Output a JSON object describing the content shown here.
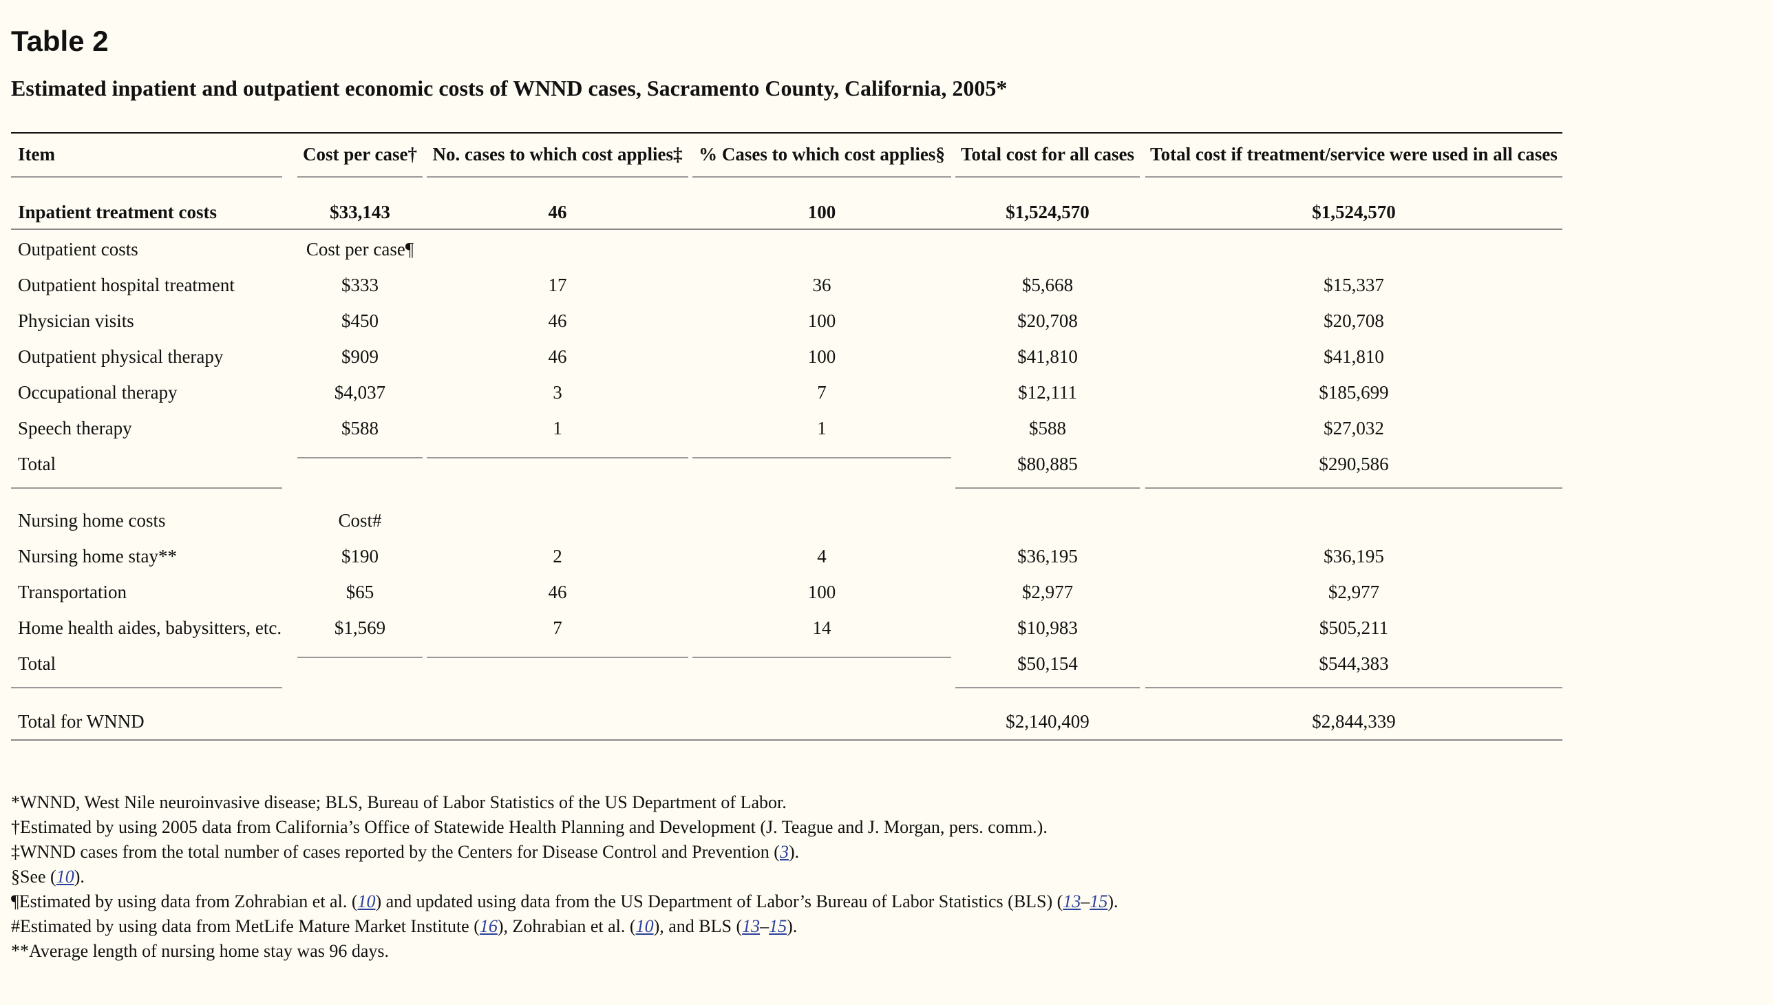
{
  "table_label": "Table 2",
  "caption": "Estimated inpatient and outpatient economic costs of WNND cases, Sacramento County, California, 2005*",
  "headers": {
    "item": "Item",
    "cost_per_case": "Cost per case†",
    "num_cases": "No. cases to which cost applies‡",
    "pct_cases": "% Cases to which cost applies§",
    "total_cost": "Total cost for all cases",
    "total_if_all": "Total cost if treatment/service were used in all cases"
  },
  "inpatient": {
    "item": "Inpatient treatment costs",
    "cost": "$33,143",
    "cases": "46",
    "pct": "100",
    "total": "$1,524,570",
    "total_all": "$1,524,570"
  },
  "outpatient": {
    "section_label": "Outpatient costs",
    "section_cost_label": "Cost per case¶",
    "rows": [
      {
        "item": "Outpatient hospital treatment",
        "cost": "$333",
        "cases": "17",
        "pct": "36",
        "total": "$5,668",
        "total_all": "$15,337"
      },
      {
        "item": "Physician visits",
        "cost": "$450",
        "cases": "46",
        "pct": "100",
        "total": "$20,708",
        "total_all": "$20,708"
      },
      {
        "item": "Outpatient physical therapy",
        "cost": "$909",
        "cases": "46",
        "pct": "100",
        "total": "$41,810",
        "total_all": "$41,810"
      },
      {
        "item": "Occupational therapy",
        "cost": "$4,037",
        "cases": "3",
        "pct": "7",
        "total": "$12,111",
        "total_all": "$185,699"
      },
      {
        "item": "Speech therapy",
        "cost": "$588",
        "cases": "1",
        "pct": "1",
        "total": "$588",
        "total_all": "$27,032"
      }
    ],
    "total_label": "Total",
    "total": "$80,885",
    "total_all": "$290,586"
  },
  "nursing": {
    "section_label": "Nursing home costs",
    "section_cost_label": "Cost#",
    "rows": [
      {
        "item": "Nursing home stay**",
        "cost": "$190",
        "cases": "2",
        "pct": "4",
        "total": "$36,195",
        "total_all": "$36,195"
      },
      {
        "item": "Transportation",
        "cost": "$65",
        "cases": "46",
        "pct": "100",
        "total": "$2,977",
        "total_all": "$2,977"
      },
      {
        "item": "Home health aides, babysitters, etc.",
        "cost": "$1,569",
        "cases": "7",
        "pct": "14",
        "total": "$10,983",
        "total_all": "$505,211"
      }
    ],
    "total_label": "Total",
    "total": "$50,154",
    "total_all": "$544,383"
  },
  "grand_total": {
    "item": "Total for WNND",
    "total": "$2,140,409",
    "total_all": "$2,844,339"
  },
  "footnotes": {
    "fn1": "*WNND, West Nile neuroinvasive disease; BLS, Bureau of Labor Statistics of the US Department of Labor.",
    "fn2": "†Estimated by using 2005 data from California’s Office of Statewide Health Planning and Development (J. Teague and J. Morgan, pers. comm.).",
    "fn3_pre": "‡WNND cases from the total number of cases reported by the Centers for Disease Control and Prevention (",
    "fn3_ref": "3",
    "fn3_post": ").",
    "fn4_pre": "§See (",
    "fn4_ref": "10",
    "fn4_post": ").",
    "fn5_pre": "¶Estimated by using data from Zohrabian et al. (",
    "fn5_ref1": "10",
    "fn5_mid": ") and updated using data from the US Department of Labor’s Bureau of Labor Statistics (BLS) (",
    "fn5_ref2": "13",
    "fn5_dash": "–",
    "fn5_ref3": "15",
    "fn5_post": ").",
    "fn6_pre": "#Estimated by using data from MetLife Mature Market Institute (",
    "fn6_ref1": "16",
    "fn6_mid1": "), Zohrabian et al. (",
    "fn6_ref2": "10",
    "fn6_mid2": "), and BLS (",
    "fn6_ref3": "13",
    "fn6_dash": "–",
    "fn6_ref4": "15",
    "fn6_post": ").",
    "fn7": "**Average length of nursing home stay was 96 days."
  }
}
